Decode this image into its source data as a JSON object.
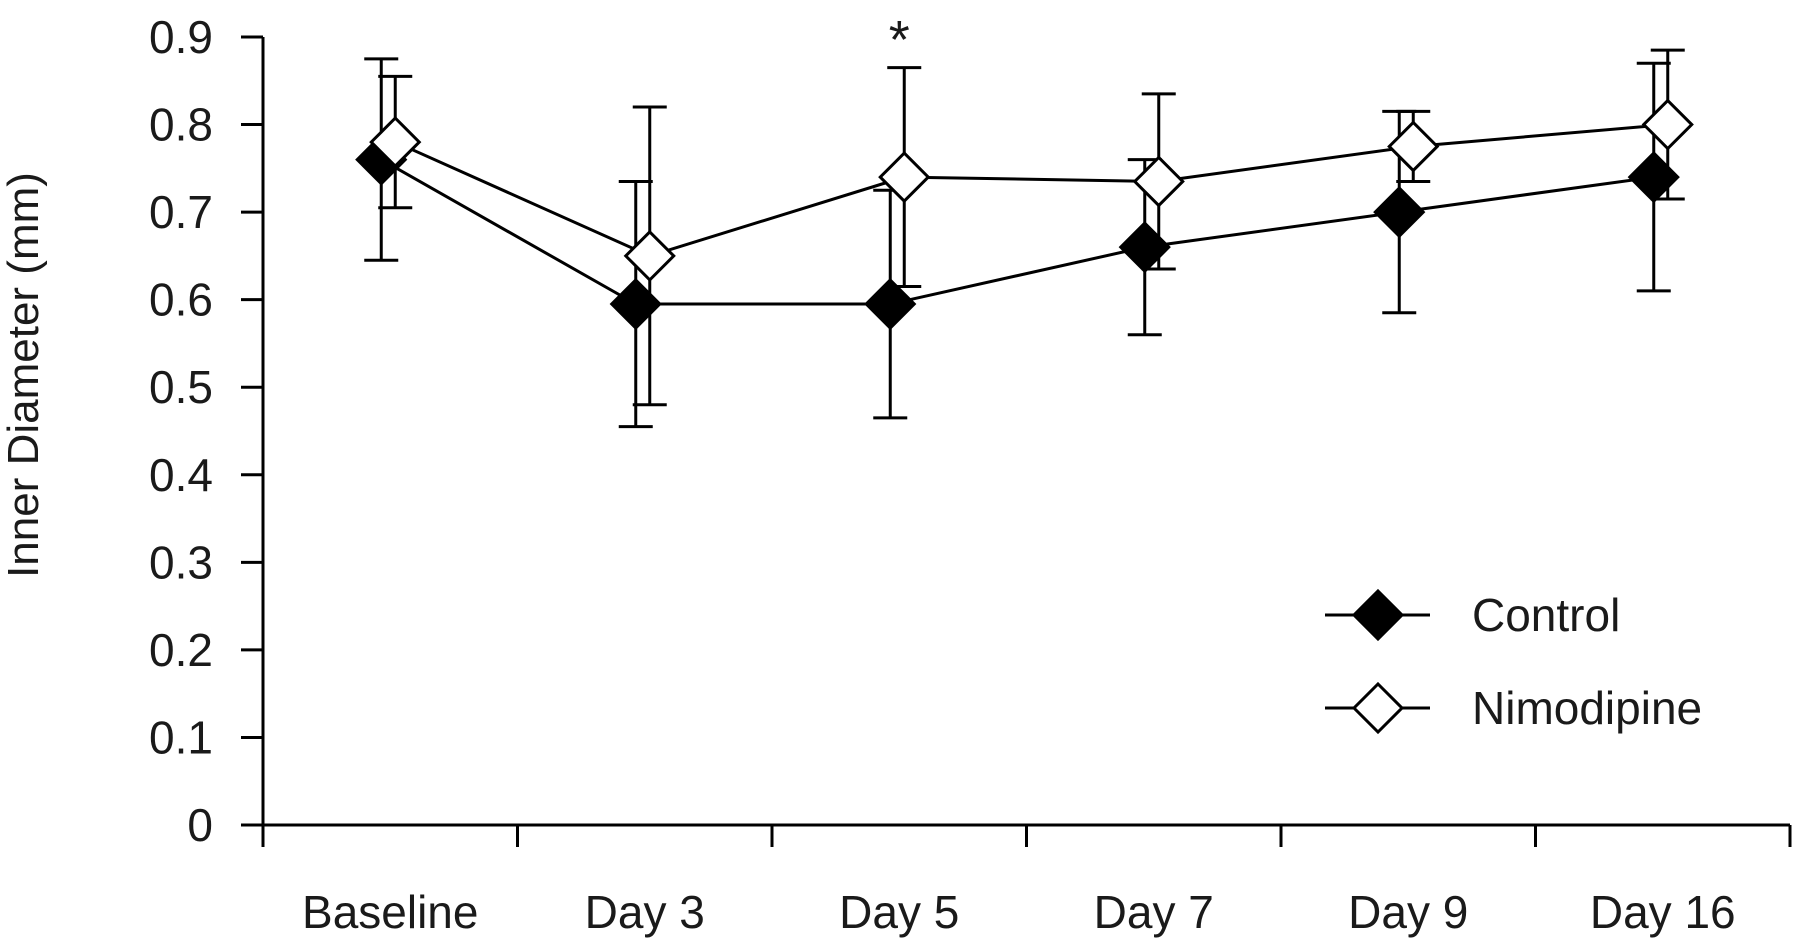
{
  "chart_data": {
    "type": "line",
    "title": "",
    "xlabel": "",
    "ylabel": "Inner Diameter (mm)",
    "categories": [
      "Baseline",
      "Day 3",
      "Day 5",
      "Day 7",
      "Day 9",
      "Day 16"
    ],
    "ylim": [
      0,
      0.9
    ],
    "yticks": [
      "0",
      "0.1",
      "0.2",
      "0.3",
      "0.4",
      "0.5",
      "0.6",
      "0.7",
      "0.8",
      "0.9"
    ],
    "grid": false,
    "legend_position": "bottom-right",
    "series": [
      {
        "name": "Control",
        "marker": "filled-diamond",
        "color": "#000000",
        "values": [
          0.76,
          0.595,
          0.595,
          0.66,
          0.7,
          0.74
        ],
        "error": [
          0.115,
          0.14,
          0.13,
          0.1,
          0.115,
          0.13
        ]
      },
      {
        "name": "Nimodipine",
        "marker": "open-diamond",
        "color": "#000000",
        "values": [
          0.78,
          0.65,
          0.74,
          0.735,
          0.775,
          0.8
        ],
        "error": [
          0.075,
          0.17,
          0.125,
          0.1,
          0.04,
          0.085
        ]
      }
    ],
    "annotations": [
      {
        "text": "*",
        "category": "Day 5"
      }
    ]
  }
}
